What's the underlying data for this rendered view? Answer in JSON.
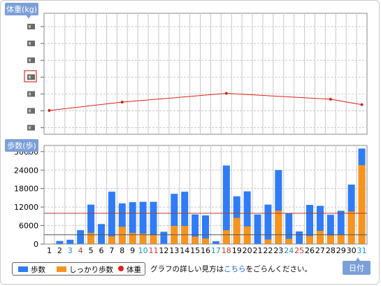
{
  "colors": {
    "steps": "#2f7cf6",
    "firm_steps": "#f7941d",
    "weight": "#e0201b",
    "badge": "#7b9fd8",
    "weekday": "#000000",
    "saturday": "#1a8fbf",
    "sunday": "#c0392b"
  },
  "weight_panel": {
    "badge": "体重(kg)",
    "tick_count": 7
  },
  "steps_panel": {
    "badge": "歩数(歩)"
  },
  "x_axis_badge": "日付",
  "legend": {
    "steps": "歩数",
    "firm_steps": "しっかり歩数",
    "weight": "体重"
  },
  "note": {
    "before": "グラフの詳しい見方は",
    "link": "こちら",
    "after": "をごらんください。"
  },
  "chart_data": [
    {
      "type": "line",
      "title": "体重(kg)",
      "x": [
        1,
        8,
        18,
        28,
        31
      ],
      "y": [
        0,
        0.23,
        0.47,
        0.31,
        0.16
      ],
      "y_is_relative": true,
      "tick_labels_hidden": true,
      "grid": true
    },
    {
      "type": "bar",
      "title": "歩数(歩)",
      "categories": [
        "1",
        "2",
        "3",
        "4",
        "5",
        "6",
        "7",
        "8",
        "9",
        "10",
        "11",
        "12",
        "13",
        "14",
        "15",
        "16",
        "17",
        "18",
        "19",
        "20",
        "21",
        "22",
        "23",
        "24",
        "25",
        "26",
        "27",
        "28",
        "29",
        "30",
        "31"
      ],
      "category_colors": [
        "weekday",
        "weekday",
        "saturday",
        "sunday",
        "weekday",
        "weekday",
        "weekday",
        "weekday",
        "weekday",
        "saturday",
        "sunday",
        "weekday",
        "weekday",
        "weekday",
        "weekday",
        "weekday",
        "saturday",
        "sunday",
        "weekday",
        "weekday",
        "weekday",
        "weekday",
        "weekday",
        "saturday",
        "sunday",
        "weekday",
        "weekday",
        "weekday",
        "weekday",
        "weekday",
        "saturday"
      ],
      "series": [
        {
          "name": "歩数",
          "values": [
            0,
            1000,
            1400,
            4500,
            12800,
            6500,
            17000,
            13200,
            13600,
            13700,
            13700,
            4000,
            16300,
            17000,
            9600,
            9300,
            900,
            25500,
            15500,
            17100,
            9600,
            12800,
            24000,
            9900,
            4100,
            12700,
            12400,
            9500,
            10800,
            19300,
            31000
          ]
        },
        {
          "name": "しっかり歩数",
          "values": [
            0,
            0,
            0,
            0,
            3600,
            0,
            2500,
            5600,
            3600,
            3400,
            3000,
            0,
            5900,
            5900,
            2400,
            1800,
            0,
            4500,
            8500,
            5700,
            0,
            1500,
            10800,
            1700,
            0,
            2600,
            4300,
            2800,
            3000,
            10600,
            25600
          ]
        }
      ],
      "ylim": [
        0,
        32000
      ],
      "yticks": [
        0,
        6000,
        12000,
        18000,
        24000,
        30000
      ],
      "reference_lines": [
        10000,
        3000
      ],
      "grid": true
    }
  ]
}
